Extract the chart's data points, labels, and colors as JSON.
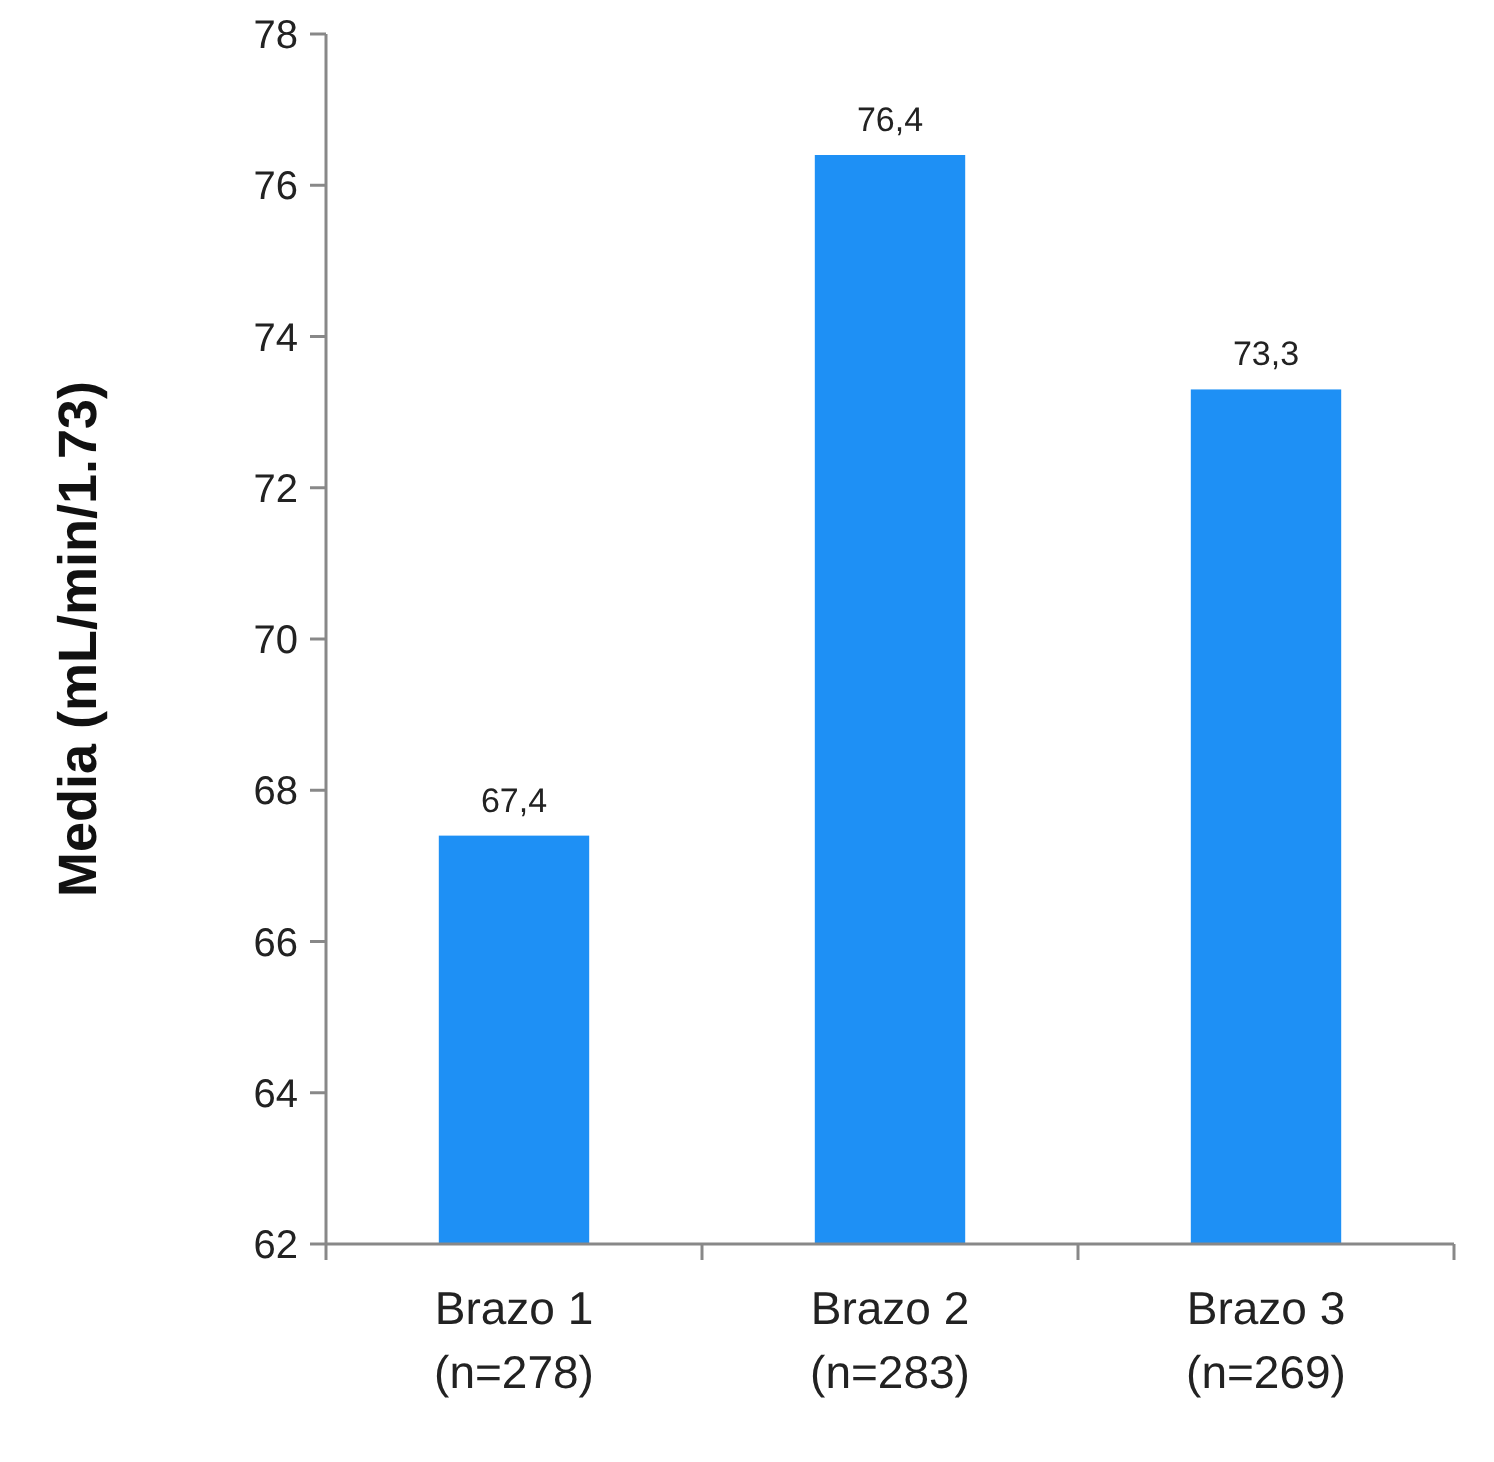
{
  "chart_data": {
    "type": "bar",
    "ylabel": "Media (mL/min/1.73)",
    "categories": [
      "Brazo 1\n(n=278)",
      "Brazo 2\n(n=283)",
      "Brazo 3\n(n=269)"
    ],
    "values": [
      67.4,
      76.4,
      73.3
    ],
    "value_labels": [
      "67,4",
      "76,4",
      "73,3"
    ],
    "color": "#1e90f5",
    "ylim": [
      62,
      78
    ],
    "yticks": [
      62,
      64,
      66,
      68,
      70,
      72,
      74,
      76,
      78
    ]
  }
}
